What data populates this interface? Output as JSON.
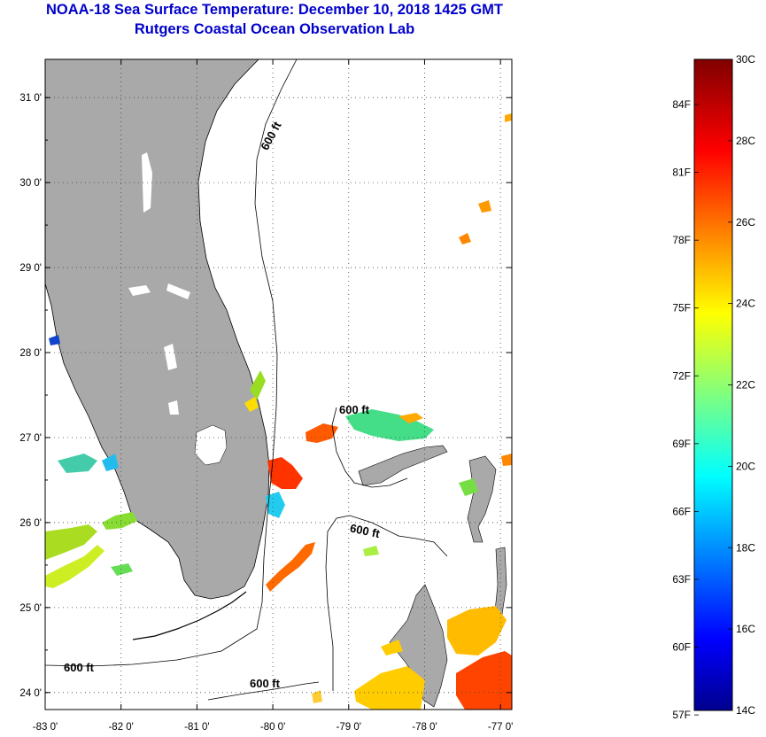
{
  "title": {
    "line1": "NOAA-18 Sea Surface Temperature:  December 10, 2018 1425 GMT",
    "line2": "Rutgers Coastal Ocean Observation Lab"
  },
  "map": {
    "lon_labels": [
      "-83 0'",
      "-82 0'",
      "-81 0'",
      "-80 0'",
      "-79 0'",
      "-78 0'",
      "-77 0'"
    ],
    "lat_labels": [
      "31 0'",
      "30 0'",
      "29 0'",
      "28 0'",
      "27 0'",
      "26 0'",
      "25 0'",
      "24 0'"
    ],
    "lon_range": [
      -83.0,
      -76.85
    ],
    "lat_range": [
      23.8,
      31.45
    ],
    "contour_label": "600 ft",
    "colors": {
      "land": "#a9a9a9",
      "ocean": "#ffffff",
      "coast": "#000000"
    }
  },
  "colorbar": {
    "fahrenheit_labels": [
      "84F",
      "81F",
      "78F",
      "75F",
      "72F",
      "69F",
      "66F",
      "63F",
      "60F",
      "57F"
    ],
    "celsius_labels": [
      "30C",
      "28C",
      "26C",
      "24C",
      "22C",
      "20C",
      "18C",
      "16C",
      "14C"
    ],
    "range_c": [
      14,
      30
    ]
  }
}
